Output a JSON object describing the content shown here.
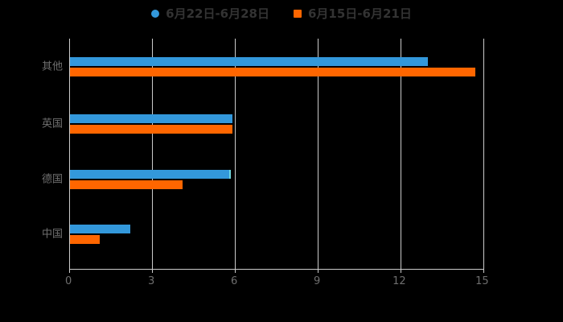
{
  "chart_data": {
    "type": "bar",
    "orientation": "horizontal",
    "title": "",
    "categories": [
      "其他",
      "英国",
      "德国",
      "中国"
    ],
    "series": [
      {
        "name": "6月22日-6月28日",
        "color": "#3398db",
        "legend_marker": "circle",
        "values": [
          13,
          5.9,
          5.8,
          2.2
        ],
        "hover_edge_index": 2,
        "hover_edge_color": "#6fd8e0"
      },
      {
        "name": "6月15日-6月21日",
        "color": "#ff6600",
        "legend_marker": "square",
        "values": [
          14.7,
          5.9,
          4.1,
          1.1
        ]
      }
    ],
    "x_axis": {
      "ticks": [
        0,
        3,
        6,
        9,
        12,
        15
      ],
      "min": 0,
      "max": 15
    },
    "legend_position": "top",
    "grid": true,
    "background_color": "#000000",
    "grid_color": "#cccccc",
    "axis_label_color": "#6e6e6e",
    "legend_text_color": "#333333"
  }
}
